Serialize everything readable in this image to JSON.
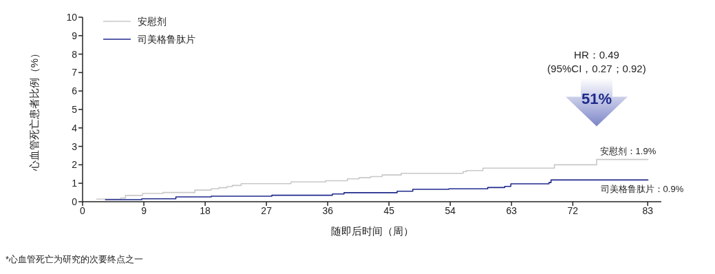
{
  "chart_data": {
    "type": "step",
    "xlabel": "随即后时间（周）",
    "ylabel": "心血管死亡患者比例（%）",
    "xlim": [
      0,
      85
    ],
    "xticks": [
      0,
      9,
      18,
      27,
      36,
      45,
      54,
      63,
      72,
      83
    ],
    "ylim": [
      0,
      10
    ],
    "yticks": [
      0,
      1,
      2,
      3,
      4,
      5,
      6,
      7,
      8,
      9,
      10
    ],
    "grid": false,
    "legend": "top left",
    "line_style": "solid",
    "marker": "none",
    "series": [
      {
        "name": "安慰剂",
        "color": "#c8c8c8",
        "x": [
          2.0,
          5.6,
          6.3,
          8.8,
          11.8,
          16.5,
          18.9,
          20,
          21.2,
          22,
          23.3,
          30.6,
          35.7,
          38.9,
          40.6,
          42.3,
          44,
          46.8,
          55.9,
          56.4,
          58.8,
          69.3,
          75.5,
          83.1
        ],
        "values": [
          0.14,
          0.2,
          0.34,
          0.45,
          0.5,
          0.63,
          0.7,
          0.76,
          0.82,
          0.88,
          0.98,
          1.07,
          1.14,
          1.24,
          1.3,
          1.36,
          1.45,
          1.54,
          1.63,
          1.69,
          1.82,
          2.0,
          2.29,
          2.29
        ]
      },
      {
        "name": "司美格鲁肽片",
        "color": "#1f2a8c",
        "x": [
          3.3,
          8.7,
          13.7,
          18.9,
          27.8,
          36.7,
          38.4,
          46.2,
          48.5,
          53.8,
          59.5,
          62,
          62.9,
          68.5,
          68.8,
          83.1
        ],
        "values": [
          0.11,
          0.16,
          0.26,
          0.3,
          0.35,
          0.42,
          0.49,
          0.57,
          0.67,
          0.7,
          0.77,
          0.83,
          0.97,
          1.04,
          1.18,
          1.18
        ]
      }
    ],
    "annotations": [
      "HR：0.49",
      "(95%CI，0.27；0.92)",
      "51%",
      "安慰剂：1.9%",
      "司美格鲁肽片：0.9%",
      "*心血管死亡为研究的次要终点之一"
    ]
  }
}
